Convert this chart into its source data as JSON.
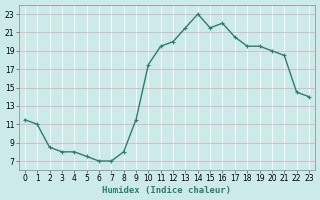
{
  "x": [
    0,
    1,
    2,
    3,
    4,
    5,
    6,
    7,
    8,
    9,
    10,
    11,
    12,
    13,
    14,
    15,
    16,
    17,
    18,
    19,
    20,
    21,
    22,
    23
  ],
  "y": [
    11.5,
    11.0,
    8.5,
    8.0,
    8.0,
    7.5,
    7.0,
    7.0,
    8.0,
    11.5,
    17.5,
    19.5,
    20.0,
    21.5,
    23.0,
    21.5,
    22.0,
    20.5,
    19.5,
    19.5,
    19.0,
    18.5,
    14.5,
    14.0
  ],
  "line_color": "#2e7d6e",
  "marker": "+",
  "marker_size": 3,
  "bg_color": "#cceaea",
  "grid_major_color": "#aacccc",
  "grid_minor_color": "#ffffff",
  "xlabel": "Humidex (Indice chaleur)",
  "ylim": [
    6,
    24
  ],
  "xlim": [
    -0.5,
    23.5
  ],
  "yticks": [
    7,
    9,
    11,
    13,
    15,
    17,
    19,
    21,
    23
  ],
  "xticks": [
    0,
    1,
    2,
    3,
    4,
    5,
    6,
    7,
    8,
    9,
    10,
    11,
    12,
    13,
    14,
    15,
    16,
    17,
    18,
    19,
    20,
    21,
    22,
    23
  ],
  "line_width": 1.0,
  "tick_fontsize": 5.5,
  "label_fontsize": 6.5
}
